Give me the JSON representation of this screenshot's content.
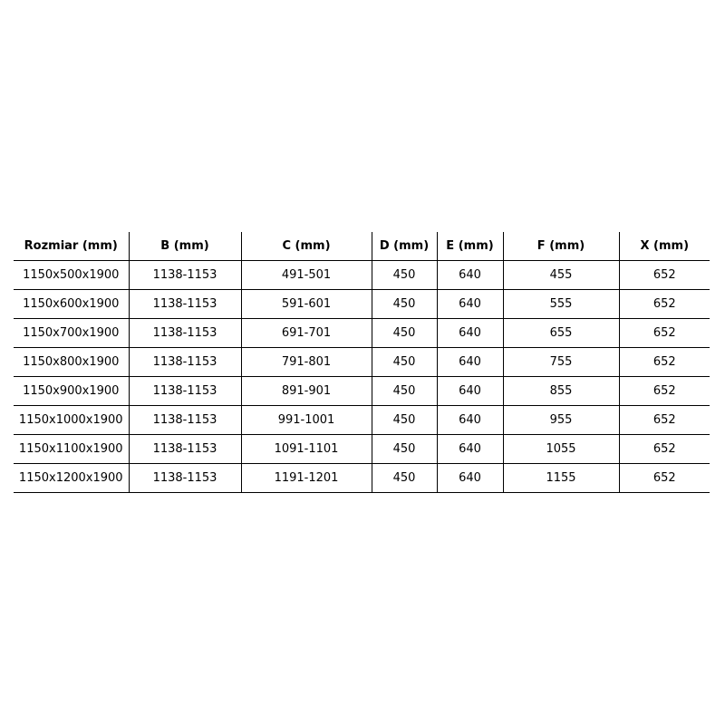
{
  "table": {
    "headers": [
      "Rozmiar (mm)",
      "B (mm)",
      "C (mm)",
      "D (mm)",
      "E (mm)",
      "F (mm)",
      "X (mm)"
    ],
    "rows": [
      [
        "1150x500x1900",
        "1138-1153",
        "491-501",
        "450",
        "640",
        "455",
        "652"
      ],
      [
        "1150x600x1900",
        "1138-1153",
        "591-601",
        "450",
        "640",
        "555",
        "652"
      ],
      [
        "1150x700x1900",
        "1138-1153",
        "691-701",
        "450",
        "640",
        "655",
        "652"
      ],
      [
        "1150x800x1900",
        "1138-1153",
        "791-801",
        "450",
        "640",
        "755",
        "652"
      ],
      [
        "1150x900x1900",
        "1138-1153",
        "891-901",
        "450",
        "640",
        "855",
        "652"
      ],
      [
        "1150x1000x1900",
        "1138-1153",
        "991-1001",
        "450",
        "640",
        "955",
        "652"
      ],
      [
        "1150x1100x1900",
        "1138-1153",
        "1091-1101",
        "450",
        "640",
        "1055",
        "652"
      ],
      [
        "1150x1200x1900",
        "1138-1153",
        "1191-1201",
        "450",
        "640",
        "1155",
        "652"
      ]
    ]
  }
}
